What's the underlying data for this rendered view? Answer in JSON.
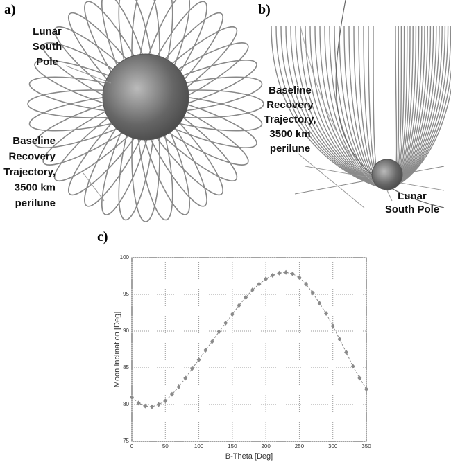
{
  "panels": [
    {
      "label": "a)",
      "annotations": [
        [
          "Lunar",
          "South",
          "Pole"
        ],
        [
          "Baseline",
          "Recovery",
          "Trajectory,",
          "3500 km",
          "perilune"
        ]
      ]
    },
    {
      "label": "b)",
      "annotations": [
        [
          "Baseline",
          "Recovery",
          "Trajectory,",
          "3500 km",
          "perilune"
        ],
        [
          "Lunar",
          "South Pole"
        ]
      ]
    },
    {
      "label": "c)"
    }
  ],
  "chart_data": {
    "type": "line",
    "xlabel": "B-Theta [Deg]",
    "ylabel": "Moon Inclination [Deg]",
    "x": [
      0,
      10,
      20,
      30,
      40,
      50,
      60,
      70,
      80,
      90,
      100,
      110,
      120,
      130,
      140,
      150,
      160,
      170,
      180,
      190,
      200,
      210,
      220,
      230,
      240,
      250,
      260,
      270,
      280,
      290,
      300,
      310,
      320,
      330,
      340,
      350
    ],
    "series": [
      {
        "color": "#8a8a8a",
        "values": [
          81,
          80.2,
          79.8,
          79.7,
          80,
          80.5,
          81.4,
          82.4,
          83.6,
          84.9,
          86.1,
          87.4,
          88.6,
          89.9,
          91.1,
          92.3,
          93.5,
          94.6,
          95.6,
          96.4,
          97.1,
          97.6,
          97.9,
          98,
          97.8,
          97.3,
          96.4,
          95.2,
          93.8,
          92.4,
          90.7,
          88.9,
          87.1,
          85.2,
          83.6,
          82.1
        ]
      }
    ],
    "xlim": [
      0,
      350
    ],
    "xticks": [
      0,
      50,
      100,
      150,
      200,
      250,
      300,
      350
    ],
    "ylim": [
      75,
      100
    ],
    "yticks": [
      75,
      80,
      85,
      90,
      95,
      100
    ],
    "grid": true
  }
}
